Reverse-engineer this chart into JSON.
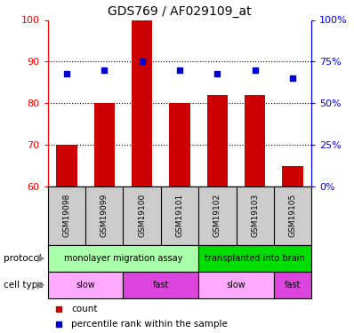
{
  "title": "GDS769 / AF029109_at",
  "samples": [
    "GSM19098",
    "GSM19099",
    "GSM19100",
    "GSM19101",
    "GSM19102",
    "GSM19103",
    "GSM19105"
  ],
  "bar_values": [
    70,
    80,
    100,
    80,
    82,
    82,
    65
  ],
  "dot_values_left": [
    87,
    88,
    90,
    88,
    87,
    88,
    86
  ],
  "ylim": [
    60,
    100
  ],
  "right_ylim": [
    0,
    100
  ],
  "right_yticks": [
    0,
    25,
    50,
    75,
    100
  ],
  "right_yticklabels": [
    "0%",
    "25%",
    "50%",
    "75%",
    "100%"
  ],
  "left_yticks": [
    60,
    70,
    80,
    90,
    100
  ],
  "bar_color": "#cc0000",
  "dot_color": "#0000cc",
  "protocol_groups": [
    {
      "label": "monolayer migration assay",
      "start": 0,
      "end": 4,
      "color": "#aaffaa"
    },
    {
      "label": "transplanted into brain",
      "start": 4,
      "end": 7,
      "color": "#00dd00"
    }
  ],
  "celltype_groups": [
    {
      "label": "slow",
      "start": 0,
      "end": 2,
      "color": "#ffaaff"
    },
    {
      "label": "fast",
      "start": 2,
      "end": 4,
      "color": "#dd44dd"
    },
    {
      "label": "slow",
      "start": 4,
      "end": 6,
      "color": "#ffaaff"
    },
    {
      "label": "fast",
      "start": 6,
      "end": 7,
      "color": "#dd44dd"
    }
  ],
  "protocol_label": "protocol",
  "celltype_label": "cell type",
  "legend_count_label": "count",
  "legend_pct_label": "percentile rank within the sample"
}
